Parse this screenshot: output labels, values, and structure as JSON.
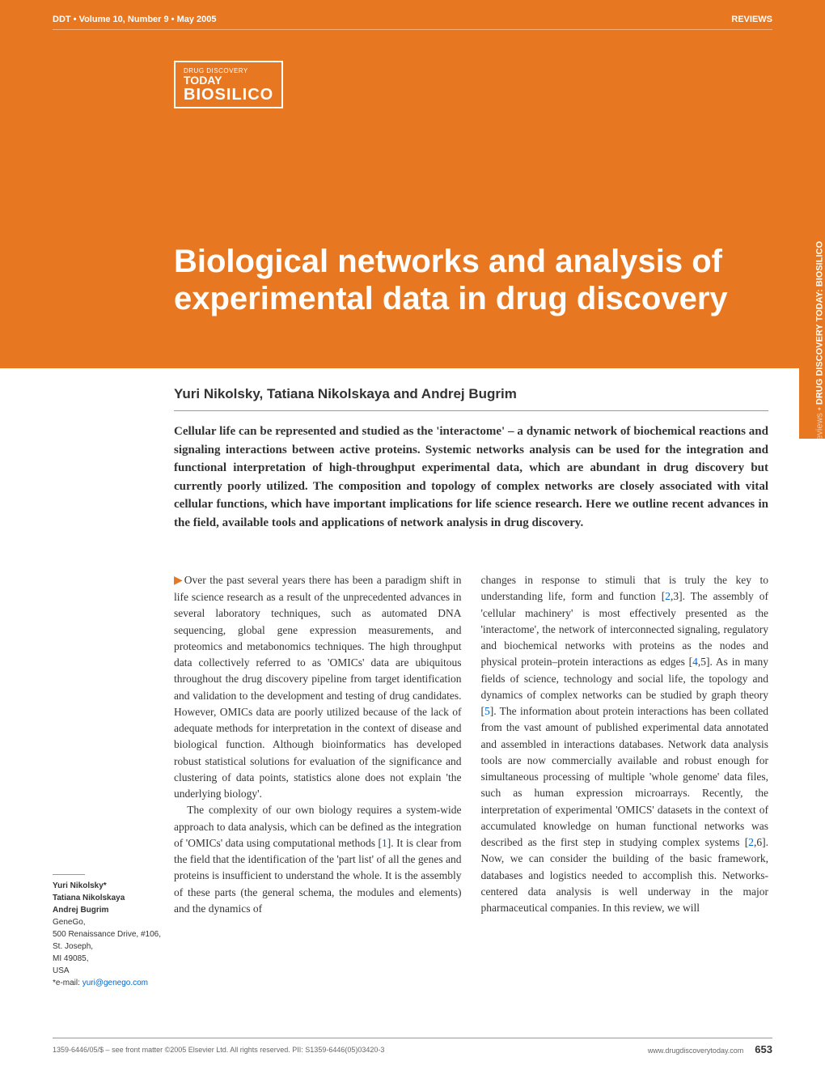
{
  "colors": {
    "brand_orange": "#e87722",
    "white": "#ffffff",
    "text_dark": "#333333",
    "link_blue": "#0066cc",
    "rule_gray": "#999999",
    "footer_gray": "#666666"
  },
  "typography": {
    "title_fontsize": 40,
    "authors_fontsize": 17,
    "abstract_fontsize": 15,
    "body_fontsize": 13.5,
    "footer_fontsize": 9,
    "sidetab_fontsize": 11
  },
  "header": {
    "issue_ref": "DDT • Volume 10, Number 9 • May 2005",
    "section": "REVIEWS",
    "logo_small": "DRUG DISCOVERY",
    "logo_today": "TODAY",
    "logo_bio": "BIOSILICO"
  },
  "side_tab": {
    "light": "Reviews • ",
    "bold": "DRUG DISCOVERY TODAY: BIOSILICO"
  },
  "article": {
    "title": "Biological networks and analysis of experimental data in drug discovery",
    "authors": "Yuri Nikolsky, Tatiana Nikolskaya and Andrej Bugrim",
    "abstract": "Cellular life can be represented and studied as the 'interactome' – a dynamic network of biochemical reactions and signaling interactions between active proteins. Systemic networks analysis can be used for the integration and functional interpretation of high-throughput experimental data, which are abundant in drug discovery but currently poorly utilized. The composition and topology of complex networks are closely associated with vital cellular functions, which have important implications for life science research. Here we outline recent advances in the field, available tools and applications of network analysis in drug discovery."
  },
  "body": {
    "col1_p1": "Over the past several years there has been a paradigm shift in life science research as a result of the unprecedented advances in several laboratory techniques, such as automated DNA sequencing, global gene expression measurements, and proteomics and metabonomics techniques. The high throughput data collectively referred to as 'OMICs' data are ubiquitous throughout the drug discovery pipeline from target identification and validation to the development and testing of drug candidates. However, OMICs data are poorly utilized because of the lack of adequate methods for interpretation in the context of disease and biological function. Although bioinformatics has developed robust statistical solutions for evaluation of the significance and clustering of data points, statistics alone does not explain 'the underlying biology'.",
    "col1_p2_a": "The complexity of our own biology requires a system-wide approach to data analysis, which can be defined as the integration of 'OMICs' data using computational methods [",
    "col1_p2_ref1": "1",
    "col1_p2_b": "]. It is clear from the field that the identification of the 'part list' of all the genes and proteins is insufficient to understand the whole. It is the assembly of these parts (the general schema, the modules and elements) and the dynamics of",
    "col2_p1_a": "changes in response to stimuli that is truly the key to understanding life, form and function [",
    "col2_p1_ref2": "2",
    "col2_p1_b": ",3]. The assembly of 'cellular machinery' is most effectively presented as the 'interactome', the network of interconnected signaling, regulatory and biochemical networks with proteins as the nodes and physical protein–protein interactions as edges [",
    "col2_p1_ref4": "4",
    "col2_p1_c": ",5]. As in many fields of science, technology and social life, the topology and dynamics of complex networks can be studied by graph theory [",
    "col2_p1_ref5": "5",
    "col2_p1_d": "]. The information about protein interactions has been collated from the vast amount of published experimental data annotated and assembled in interactions databases. Network data analysis tools are now commercially available and robust enough for simultaneous processing of multiple 'whole genome' data files, such as human expression microarrays. Recently, the interpretation of experimental 'OMICS' datasets in the context of accumulated knowledge on human functional networks was described as the first step in studying complex systems [",
    "col2_p1_ref2b": "2",
    "col2_p1_e": ",6]. Now, we can consider the building of the basic framework, databases and logistics needed to accomplish this. Networks-centered data analysis is well underway in the major pharmaceutical companies. In this review, we will"
  },
  "author_info": {
    "name1": "Yuri Nikolsky*",
    "name2": "Tatiana Nikolskaya",
    "name3": "Andrej Bugrim",
    "org": "GeneGo,",
    "addr1": "500 Renaissance Drive, #106,",
    "addr2": "St. Joseph,",
    "addr3": "MI 49085,",
    "addr4": "USA",
    "email_label": "*e-mail: ",
    "email": "yuri@genego.com"
  },
  "footer": {
    "copyright": "1359-6446/05/$ – see front matter ©2005 Elsevier Ltd. All rights reserved. PII: S1359-6446(05)03420-3",
    "url": "www.drugdiscoverytoday.com",
    "page": "653"
  }
}
